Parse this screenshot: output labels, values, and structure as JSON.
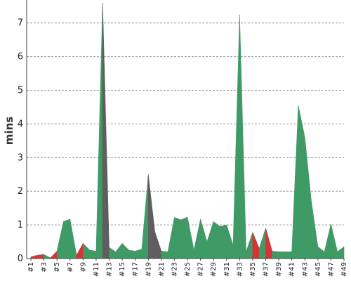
{
  "colors": {
    "pass": "#3f9a66",
    "fail": "#d63434",
    "other": "#5e5e5e",
    "grid": "#999999",
    "axis": "#444444"
  },
  "chart_data": {
    "type": "area",
    "title": "",
    "xlabel": "",
    "ylabel": "mins",
    "ylim": [
      0,
      7.6
    ],
    "yticks": [
      0,
      1,
      2,
      3,
      4,
      5,
      6,
      7
    ],
    "grid": true,
    "x": [
      "#1",
      "#2",
      "#3",
      "#4",
      "#5",
      "#6",
      "#7",
      "#8",
      "#9",
      "#10",
      "#11",
      "#12",
      "#13",
      "#14",
      "#15",
      "#16",
      "#17",
      "#18",
      "#19",
      "#20",
      "#21",
      "#22",
      "#23",
      "#24",
      "#25",
      "#26",
      "#27",
      "#28",
      "#29",
      "#30",
      "#31",
      "#32",
      "#33",
      "#34",
      "#35",
      "#36",
      "#37",
      "#38",
      "#39",
      "#40",
      "#41",
      "#42",
      "#43",
      "#44",
      "#45",
      "#46",
      "#47",
      "#48",
      "#49"
    ],
    "xtick_labels": [
      "#1",
      "#3",
      "#5",
      "#7",
      "#9",
      "#11",
      "#13",
      "#15",
      "#17",
      "#19",
      "#21",
      "#23",
      "#25",
      "#27",
      "#29",
      "#31",
      "#33",
      "#35",
      "#37",
      "#39",
      "#41",
      "#43",
      "#45",
      "#47",
      "#49"
    ],
    "values": [
      0.05,
      0.1,
      0.12,
      0.02,
      0.22,
      1.1,
      1.17,
      0.1,
      0.45,
      0.25,
      0.22,
      8.5,
      0.33,
      0.2,
      0.45,
      0.25,
      0.22,
      0.28,
      2.5,
      0.8,
      0.22,
      0.2,
      1.22,
      1.15,
      1.23,
      0.25,
      1.17,
      0.5,
      1.1,
      0.95,
      1.0,
      0.4,
      7.25,
      0.2,
      0.78,
      0.3,
      0.9,
      0.22,
      0.2,
      0.2,
      0.2,
      4.55,
      3.6,
      1.7,
      0.35,
      0.2,
      1.03,
      0.2,
      0.35
    ],
    "status": [
      "fail",
      "fail",
      "pass",
      "fail",
      "pass",
      "pass",
      "pass",
      "fail",
      "pass",
      "pass",
      "pass",
      "other",
      "pass",
      "pass",
      "pass",
      "pass",
      "pass",
      "pass",
      "other",
      "other",
      "pass",
      "pass",
      "pass",
      "pass",
      "pass",
      "pass",
      "pass",
      "pass",
      "pass",
      "pass",
      "pass",
      "pass",
      "pass",
      "pass",
      "fail",
      "pass",
      "fail",
      "pass",
      "pass",
      "pass",
      "pass",
      "pass",
      "pass",
      "pass",
      "pass",
      "pass",
      "pass",
      "pass",
      "pass"
    ]
  }
}
